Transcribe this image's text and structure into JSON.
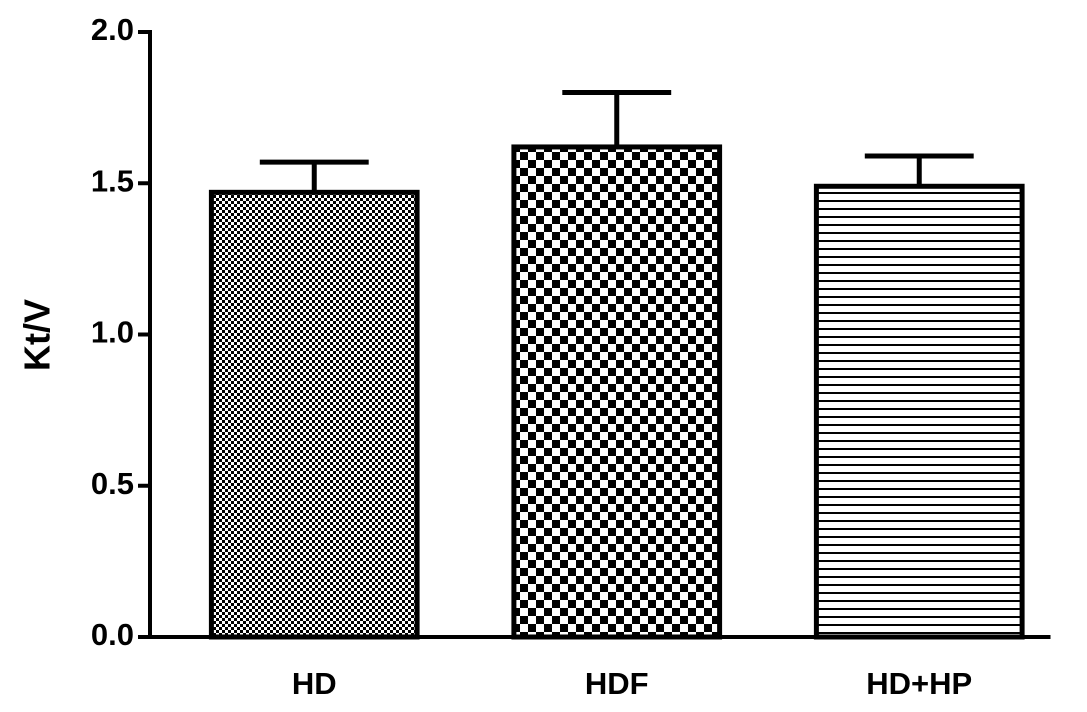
{
  "chart_data": {
    "type": "bar",
    "ylabel": "Kt/V",
    "categories": [
      "HD",
      "HDF",
      "HD+HP"
    ],
    "values": [
      1.47,
      1.62,
      1.49
    ],
    "errors": [
      0.1,
      0.18,
      0.1
    ],
    "color": "#000000",
    "ylim": [
      0,
      2.0
    ],
    "yticks": [
      {
        "value": 0,
        "label": "0.0"
      },
      {
        "value": 0.5,
        "label": "0.5"
      },
      {
        "value": 1.0,
        "label": "1.0"
      },
      {
        "value": 1.5,
        "label": "1.5"
      },
      {
        "value": 2.0,
        "label": "2.0"
      }
    ],
    "grid": false
  }
}
